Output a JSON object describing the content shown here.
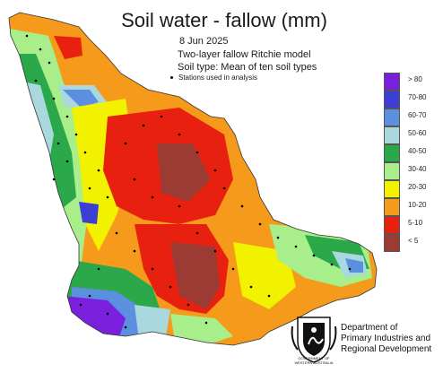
{
  "header": {
    "title": "Soil water - fallow (mm)",
    "date": "8 Jun 2025",
    "model": "Two-layer fallow Ritchie model",
    "soil_type": "Soil type: Mean of ten soil types",
    "stations_note": "Stations used in analysis"
  },
  "legend": {
    "items": [
      {
        "label": "> 80",
        "color": "#7a1fdc"
      },
      {
        "label": "70-80",
        "color": "#3b3fd6"
      },
      {
        "label": "60-70",
        "color": "#5b8fe0"
      },
      {
        "label": "50-60",
        "color": "#a9d8de"
      },
      {
        "label": "40-50",
        "color": "#2aa84a"
      },
      {
        "label": "30-40",
        "color": "#a8ee8a"
      },
      {
        "label": "20-30",
        "color": "#f2f200"
      },
      {
        "label": "10-20",
        "color": "#f59a1a"
      },
      {
        "label": "5-10",
        "color": "#e8200f"
      },
      {
        "label": "< 5",
        "color": "#9c3a34"
      }
    ]
  },
  "footer": {
    "dept_line1": "Department of",
    "dept_line2": "Primary Industries and",
    "dept_line3": "Regional Development",
    "gov_line1": "GOVERNMENT OF",
    "gov_line2": "WESTERN AUSTRALIA"
  }
}
